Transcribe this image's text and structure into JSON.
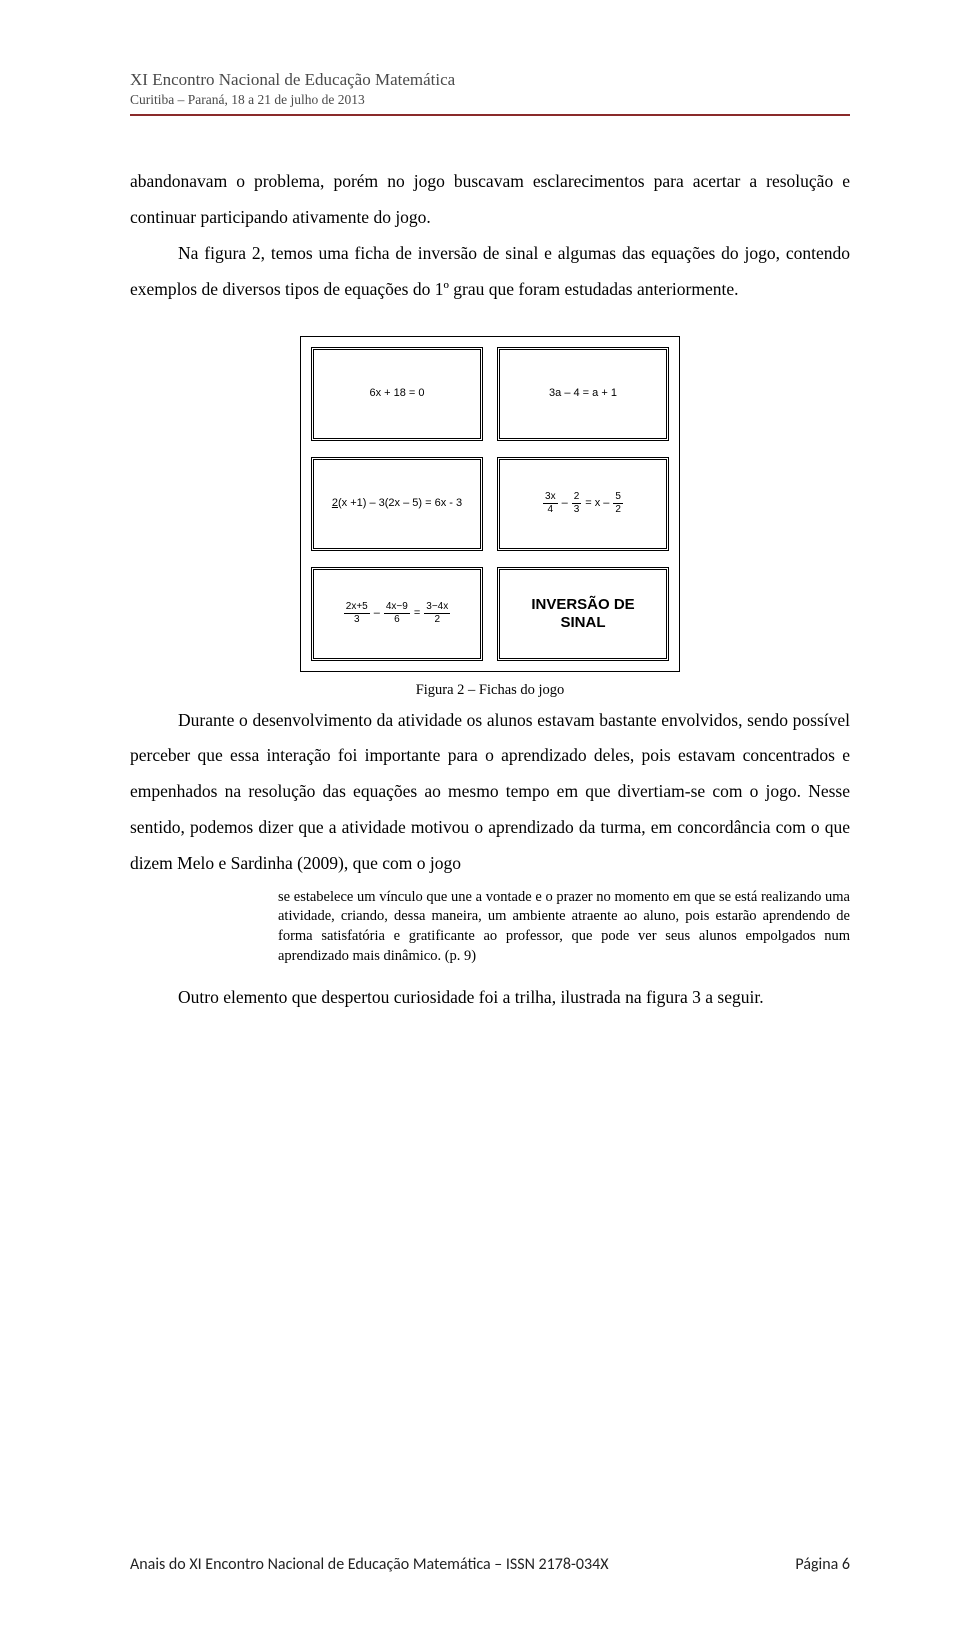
{
  "header": {
    "title": "XI Encontro Nacional de Educação Matemática",
    "subtitle": "Curitiba – Paraná, 18 a 21 de julho de 2013",
    "rule_color": "#8a2a2a"
  },
  "para1": "abandonavam o problema, porém no jogo buscavam esclarecimentos para acertar a resolução e continuar participando ativamente do jogo.",
  "para2": "Na figura 2, temos uma ficha de inversão de sinal e algumas das equações do jogo, contendo exemplos de diversos tipos de equações do 1º grau que foram estudadas anteriormente.",
  "figure": {
    "cards": {
      "c1": "6x + 18 = 0",
      "c2": "3a – 4 = a + 1",
      "c3_prefix_underlined": "2",
      "c3_rest": "(x +1) – 3(2x – 5) = 6x - 3",
      "c4_f1_num": "3x",
      "c4_f1_den": "4",
      "c4_mid1": "–",
      "c4_f2_num": "2",
      "c4_f2_den": "3",
      "c4_eq": "= x –",
      "c4_f3_num": "5",
      "c4_f3_den": "2",
      "c5_f1_num": "2x+5",
      "c5_f1_den": "3",
      "c5_mid1": "–",
      "c5_f2_num": "4x−9",
      "c5_f2_den": "6",
      "c5_eq": "=",
      "c5_f3_num": "3−4x",
      "c5_f3_den": "2",
      "c6_line1": "INVERSÃO DE",
      "c6_line2": "SINAL"
    },
    "caption": "Figura 2 – Fichas do jogo"
  },
  "para3": "Durante o desenvolvimento da atividade os alunos estavam bastante envolvidos, sendo possível perceber que essa interação foi importante para o aprendizado deles, pois estavam concentrados e empenhados na resolução das equações ao mesmo tempo em que divertiam-se com o jogo. Nesse sentido, podemos dizer que a atividade motivou o aprendizado da turma, em concordância com o que dizem Melo e Sardinha (2009), que com o jogo",
  "quote": "se estabelece um vínculo que une a vontade e o prazer no momento em que se está realizando uma atividade, criando, dessa maneira, um ambiente atraente ao aluno, pois estarão aprendendo de forma satisfatória e gratificante ao professor, que pode ver seus alunos empolgados num aprendizado mais dinâmico. (p. 9)",
  "para4": "Outro elemento que despertou curiosidade foi a trilha, ilustrada na figura 3 a seguir.",
  "footer": {
    "left": "Anais do XI Encontro Nacional de Educação Matemática – ISSN 2178-034X",
    "right": "Página 6"
  }
}
